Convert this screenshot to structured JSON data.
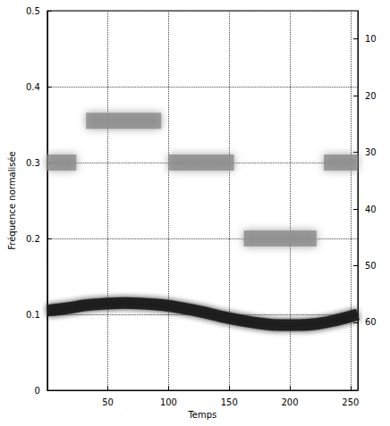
{
  "chart_data": {
    "type": "line",
    "xlabel": "Temps",
    "ylabel": "Fréquence normalisée",
    "xlim": [
      0,
      256
    ],
    "xticks": [
      50,
      100,
      150,
      200,
      250
    ],
    "ylim": [
      0,
      0.5
    ],
    "yticks": [
      0,
      0.1,
      0.2,
      0.3,
      0.4,
      0.5
    ],
    "y2lim": [
      72,
      5
    ],
    "y2ticks": [
      10,
      20,
      30,
      40,
      50,
      60
    ],
    "grid": true,
    "series": [
      {
        "color": "#8c8c8c",
        "x": [
          0,
          24,
          26,
          32,
          64,
          94,
          96,
          100,
          128,
          154,
          156,
          162,
          192,
          222,
          224,
          228,
          256
        ],
        "values": [
          0.3,
          0.3,
          null,
          0.355,
          0.355,
          0.355,
          null,
          0.3,
          0.3,
          0.3,
          null,
          0.2,
          0.2,
          0.2,
          null,
          0.3,
          0.3
        ]
      },
      {
        "color": "#1e1e1e",
        "x": [
          0,
          16,
          32,
          48,
          64,
          80,
          96,
          112,
          128,
          144,
          160,
          176,
          192,
          208,
          224,
          240,
          256
        ],
        "values": [
          0.105,
          0.108,
          0.112,
          0.114,
          0.115,
          0.114,
          0.112,
          0.108,
          0.103,
          0.097,
          0.092,
          0.088,
          0.086,
          0.086,
          0.088,
          0.093,
          0.1
        ]
      }
    ]
  }
}
